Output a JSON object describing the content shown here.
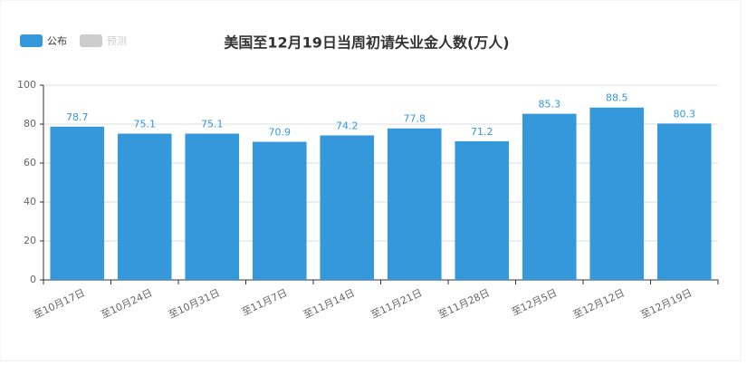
{
  "chart_data": {
    "type": "bar",
    "title": "美国至12月19日当周初请失业金人数(万人)",
    "categories": [
      "至10月17日",
      "至10月24日",
      "至10月31日",
      "至11月7日",
      "至11月14日",
      "至11月21日",
      "至11月28日",
      "至12月5日",
      "至12月12日",
      "至12月19日"
    ],
    "series": [
      {
        "name": "公布",
        "color": "#3498db",
        "values": [
          78.7,
          75.1,
          75.1,
          70.9,
          74.2,
          77.8,
          71.2,
          85.3,
          88.5,
          80.3
        ]
      },
      {
        "name": "预测",
        "color": "#cccccc",
        "values": [
          null,
          null,
          null,
          null,
          null,
          null,
          null,
          null,
          null,
          null
        ]
      }
    ],
    "ylim": [
      0,
      100
    ],
    "yticks": [
      0,
      20,
      40,
      60,
      80,
      100
    ],
    "grid": true
  }
}
